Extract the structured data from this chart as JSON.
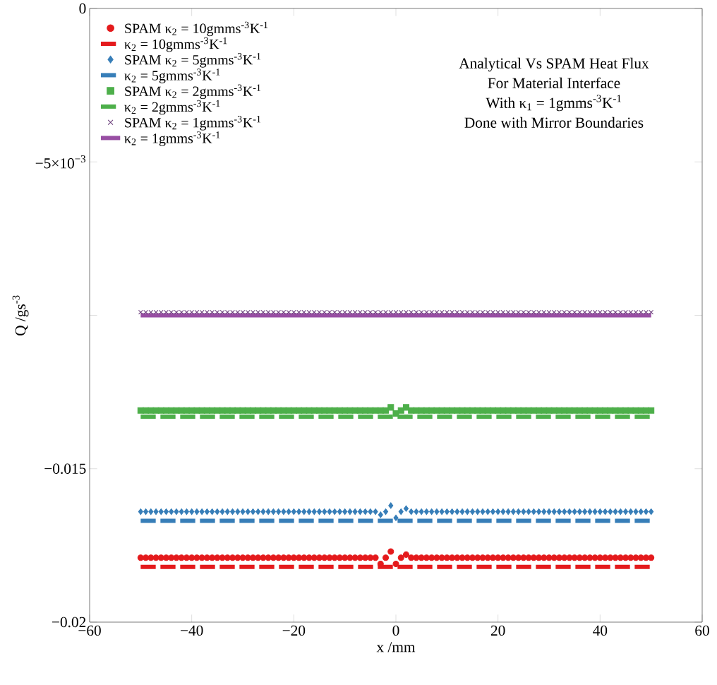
{
  "chart_data": {
    "type": "line",
    "xlabel": "x /mm",
    "ylabel": "Q /gs$^{-3}$",
    "xlim": [
      -60,
      60
    ],
    "ylim": [
      -0.02,
      0
    ],
    "xticks": [
      {
        "value": -60,
        "label": "−60"
      },
      {
        "value": -40,
        "label": "−40"
      },
      {
        "value": -20,
        "label": "−20"
      },
      0,
      20,
      40,
      60
    ],
    "yticks": [
      {
        "value": -0.02,
        "label": "−0.02"
      },
      {
        "value": -0.015,
        "label": "−0.015"
      },
      {
        "value": -0.01,
        "label": null
      },
      {
        "value": -0.005,
        "label": "−5×10$^{−3}$"
      },
      0
    ],
    "legend": "top left",
    "grid": false,
    "annotations": [
      "Analytical Vs SPAM Heat Flux",
      "For Material Interface",
      "With κ$_{1}$ = 1gmms$^{-3}$K$^{-1}$",
      "Done with Mirror Boundaries"
    ],
    "series": [
      {
        "name": "SPAM κ$_{2}$ = 10gmms$^{-3}$K$^{-1}$",
        "type": "scatter",
        "marker": "circle",
        "color": "#e41a1c",
        "x": [
          -50,
          -49,
          -48,
          -47,
          -46,
          -45,
          -44,
          -43,
          -42,
          -41,
          -40,
          -39,
          -38,
          -37,
          -36,
          -35,
          -34,
          -33,
          -32,
          -31,
          -30,
          -29,
          -28,
          -27,
          -26,
          -25,
          -24,
          -23,
          -22,
          -21,
          -20,
          -19,
          -18,
          -17,
          -16,
          -15,
          -14,
          -13,
          -12,
          -11,
          -10,
          -9,
          -8,
          -7,
          -6,
          -5,
          -4,
          -3,
          -2,
          -1,
          0,
          1,
          2,
          3,
          4,
          5,
          6,
          7,
          8,
          9,
          10,
          11,
          12,
          13,
          14,
          15,
          16,
          17,
          18,
          19,
          20,
          21,
          22,
          23,
          24,
          25,
          26,
          27,
          28,
          29,
          30,
          31,
          32,
          33,
          34,
          35,
          36,
          37,
          38,
          39,
          40,
          41,
          42,
          43,
          44,
          45,
          46,
          47,
          48,
          49,
          50
        ],
        "values": [
          -0.0179,
          -0.0179,
          -0.0179,
          -0.0179,
          -0.0179,
          -0.0179,
          -0.0179,
          -0.0179,
          -0.0179,
          -0.0179,
          -0.0179,
          -0.0179,
          -0.0179,
          -0.0179,
          -0.0179,
          -0.0179,
          -0.0179,
          -0.0179,
          -0.0179,
          -0.0179,
          -0.0179,
          -0.0179,
          -0.0179,
          -0.0179,
          -0.0179,
          -0.0179,
          -0.0179,
          -0.0179,
          -0.0179,
          -0.0179,
          -0.0179,
          -0.0179,
          -0.0179,
          -0.0179,
          -0.0179,
          -0.0179,
          -0.0179,
          -0.0179,
          -0.0179,
          -0.0179,
          -0.0179,
          -0.0179,
          -0.0179,
          -0.0179,
          -0.0179,
          -0.0179,
          -0.0179,
          -0.0181,
          -0.0179,
          -0.0177,
          -0.0181,
          -0.0179,
          -0.0178,
          -0.0179,
          -0.0179,
          -0.0179,
          -0.0179,
          -0.0179,
          -0.0179,
          -0.0179,
          -0.0179,
          -0.0179,
          -0.0179,
          -0.0179,
          -0.0179,
          -0.0179,
          -0.0179,
          -0.0179,
          -0.0179,
          -0.0179,
          -0.0179,
          -0.0179,
          -0.0179,
          -0.0179,
          -0.0179,
          -0.0179,
          -0.0179,
          -0.0179,
          -0.0179,
          -0.0179,
          -0.0179,
          -0.0179,
          -0.0179,
          -0.0179,
          -0.0179,
          -0.0179,
          -0.0179,
          -0.0179,
          -0.0179,
          -0.0179,
          -0.0179,
          -0.0179,
          -0.0179,
          -0.0179,
          -0.0179,
          -0.0179,
          -0.0179,
          -0.0179,
          -0.0179,
          -0.0179,
          -0.0179
        ]
      },
      {
        "name": "κ$_{2}$ = 10gmms$^{-3}$K$^{-1}$",
        "line_style": "dashed",
        "color": "#e41a1c",
        "x": [
          -50,
          50
        ],
        "values": [
          -0.0182,
          -0.0182
        ]
      },
      {
        "name": "SPAM κ$_{2}$ = 5gmms$^{-3}$K$^{-1}$",
        "type": "scatter",
        "marker": "diamond",
        "color": "#377eb8",
        "x": [
          -50,
          -49,
          -48,
          -47,
          -46,
          -45,
          -44,
          -43,
          -42,
          -41,
          -40,
          -39,
          -38,
          -37,
          -36,
          -35,
          -34,
          -33,
          -32,
          -31,
          -30,
          -29,
          -28,
          -27,
          -26,
          -25,
          -24,
          -23,
          -22,
          -21,
          -20,
          -19,
          -18,
          -17,
          -16,
          -15,
          -14,
          -13,
          -12,
          -11,
          -10,
          -9,
          -8,
          -7,
          -6,
          -5,
          -4,
          -3,
          -2,
          -1,
          0,
          1,
          2,
          3,
          4,
          5,
          6,
          7,
          8,
          9,
          10,
          11,
          12,
          13,
          14,
          15,
          16,
          17,
          18,
          19,
          20,
          21,
          22,
          23,
          24,
          25,
          26,
          27,
          28,
          29,
          30,
          31,
          32,
          33,
          34,
          35,
          36,
          37,
          38,
          39,
          40,
          41,
          42,
          43,
          44,
          45,
          46,
          47,
          48,
          49,
          50
        ],
        "values": [
          -0.0164,
          -0.0164,
          -0.0164,
          -0.0164,
          -0.0164,
          -0.0164,
          -0.0164,
          -0.0164,
          -0.0164,
          -0.0164,
          -0.0164,
          -0.0164,
          -0.0164,
          -0.0164,
          -0.0164,
          -0.0164,
          -0.0164,
          -0.0164,
          -0.0164,
          -0.0164,
          -0.0164,
          -0.0164,
          -0.0164,
          -0.0164,
          -0.0164,
          -0.0164,
          -0.0164,
          -0.0164,
          -0.0164,
          -0.0164,
          -0.0164,
          -0.0164,
          -0.0164,
          -0.0164,
          -0.0164,
          -0.0164,
          -0.0164,
          -0.0164,
          -0.0164,
          -0.0164,
          -0.0164,
          -0.0164,
          -0.0164,
          -0.0164,
          -0.0164,
          -0.0164,
          -0.0164,
          -0.0165,
          -0.0164,
          -0.0162,
          -0.0166,
          -0.0164,
          -0.0163,
          -0.0164,
          -0.0164,
          -0.0164,
          -0.0164,
          -0.0164,
          -0.0164,
          -0.0164,
          -0.0164,
          -0.0164,
          -0.0164,
          -0.0164,
          -0.0164,
          -0.0164,
          -0.0164,
          -0.0164,
          -0.0164,
          -0.0164,
          -0.0164,
          -0.0164,
          -0.0164,
          -0.0164,
          -0.0164,
          -0.0164,
          -0.0164,
          -0.0164,
          -0.0164,
          -0.0164,
          -0.0164,
          -0.0164,
          -0.0164,
          -0.0164,
          -0.0164,
          -0.0164,
          -0.0164,
          -0.0164,
          -0.0164,
          -0.0164,
          -0.0164,
          -0.0164,
          -0.0164,
          -0.0164,
          -0.0164,
          -0.0164,
          -0.0164,
          -0.0164,
          -0.0164,
          -0.0164,
          -0.0164
        ]
      },
      {
        "name": "κ$_{2}$ = 5gmms$^{-3}$K$^{-1}$",
        "line_style": "dashed",
        "color": "#377eb8",
        "x": [
          -50,
          50
        ],
        "values": [
          -0.0167,
          -0.0167
        ]
      },
      {
        "name": "SPAM κ$_{2}$ = 2gmms$^{-3}$K$^{-1}$",
        "type": "scatter",
        "marker": "square",
        "color": "#4daf4a",
        "x": [
          -50,
          -49,
          -48,
          -47,
          -46,
          -45,
          -44,
          -43,
          -42,
          -41,
          -40,
          -39,
          -38,
          -37,
          -36,
          -35,
          -34,
          -33,
          -32,
          -31,
          -30,
          -29,
          -28,
          -27,
          -26,
          -25,
          -24,
          -23,
          -22,
          -21,
          -20,
          -19,
          -18,
          -17,
          -16,
          -15,
          -14,
          -13,
          -12,
          -11,
          -10,
          -9,
          -8,
          -7,
          -6,
          -5,
          -4,
          -3,
          -2,
          -1,
          0,
          1,
          2,
          3,
          4,
          5,
          6,
          7,
          8,
          9,
          10,
          11,
          12,
          13,
          14,
          15,
          16,
          17,
          18,
          19,
          20,
          21,
          22,
          23,
          24,
          25,
          26,
          27,
          28,
          29,
          30,
          31,
          32,
          33,
          34,
          35,
          36,
          37,
          38,
          39,
          40,
          41,
          42,
          43,
          44,
          45,
          46,
          47,
          48,
          49,
          50
        ],
        "values": [
          -0.0131,
          -0.0131,
          -0.0131,
          -0.0131,
          -0.0131,
          -0.0131,
          -0.0131,
          -0.0131,
          -0.0131,
          -0.0131,
          -0.0131,
          -0.0131,
          -0.0131,
          -0.0131,
          -0.0131,
          -0.0131,
          -0.0131,
          -0.0131,
          -0.0131,
          -0.0131,
          -0.0131,
          -0.0131,
          -0.0131,
          -0.0131,
          -0.0131,
          -0.0131,
          -0.0131,
          -0.0131,
          -0.0131,
          -0.0131,
          -0.0131,
          -0.0131,
          -0.0131,
          -0.0131,
          -0.0131,
          -0.0131,
          -0.0131,
          -0.0131,
          -0.0131,
          -0.0131,
          -0.0131,
          -0.0131,
          -0.0131,
          -0.0131,
          -0.0131,
          -0.0131,
          -0.0131,
          -0.0131,
          -0.0131,
          -0.013,
          -0.0132,
          -0.0131,
          -0.013,
          -0.0131,
          -0.0131,
          -0.0131,
          -0.0131,
          -0.0131,
          -0.0131,
          -0.0131,
          -0.0131,
          -0.0131,
          -0.0131,
          -0.0131,
          -0.0131,
          -0.0131,
          -0.0131,
          -0.0131,
          -0.0131,
          -0.0131,
          -0.0131,
          -0.0131,
          -0.0131,
          -0.0131,
          -0.0131,
          -0.0131,
          -0.0131,
          -0.0131,
          -0.0131,
          -0.0131,
          -0.0131,
          -0.0131,
          -0.0131,
          -0.0131,
          -0.0131,
          -0.0131,
          -0.0131,
          -0.0131,
          -0.0131,
          -0.0131,
          -0.0131,
          -0.0131,
          -0.0131,
          -0.0131,
          -0.0131,
          -0.0131,
          -0.0131,
          -0.0131,
          -0.0131,
          -0.0131,
          -0.0131
        ]
      },
      {
        "name": "κ$_{2}$ = 2gmms$^{-3}$K$^{-1}$",
        "line_style": "dashed",
        "color": "#4daf4a",
        "x": [
          -50,
          50
        ],
        "values": [
          -0.0133,
          -0.0133
        ]
      },
      {
        "name": "SPAM κ$_{2}$ = 1gmms$^{-3}$K$^{-1}$",
        "type": "scatter",
        "marker": "cross",
        "color": "#6a3d7a",
        "x": [
          -50,
          -49,
          -48,
          -47,
          -46,
          -45,
          -44,
          -43,
          -42,
          -41,
          -40,
          -39,
          -38,
          -37,
          -36,
          -35,
          -34,
          -33,
          -32,
          -31,
          -30,
          -29,
          -28,
          -27,
          -26,
          -25,
          -24,
          -23,
          -22,
          -21,
          -20,
          -19,
          -18,
          -17,
          -16,
          -15,
          -14,
          -13,
          -12,
          -11,
          -10,
          -9,
          -8,
          -7,
          -6,
          -5,
          -4,
          -3,
          -2,
          -1,
          0,
          1,
          2,
          3,
          4,
          5,
          6,
          7,
          8,
          9,
          10,
          11,
          12,
          13,
          14,
          15,
          16,
          17,
          18,
          19,
          20,
          21,
          22,
          23,
          24,
          25,
          26,
          27,
          28,
          29,
          30,
          31,
          32,
          33,
          34,
          35,
          36,
          37,
          38,
          39,
          40,
          41,
          42,
          43,
          44,
          45,
          46,
          47,
          48,
          49,
          50
        ],
        "values": [
          -0.0099,
          -0.0099,
          -0.0099,
          -0.0099,
          -0.0099,
          -0.0099,
          -0.0099,
          -0.0099,
          -0.0099,
          -0.0099,
          -0.0099,
          -0.0099,
          -0.0099,
          -0.0099,
          -0.0099,
          -0.0099,
          -0.0099,
          -0.0099,
          -0.0099,
          -0.0099,
          -0.0099,
          -0.0099,
          -0.0099,
          -0.0099,
          -0.0099,
          -0.0099,
          -0.0099,
          -0.0099,
          -0.0099,
          -0.0099,
          -0.0099,
          -0.0099,
          -0.0099,
          -0.0099,
          -0.0099,
          -0.0099,
          -0.0099,
          -0.0099,
          -0.0099,
          -0.0099,
          -0.0099,
          -0.0099,
          -0.0099,
          -0.0099,
          -0.0099,
          -0.0099,
          -0.0099,
          -0.0099,
          -0.0099,
          -0.0099,
          -0.0099,
          -0.0099,
          -0.0099,
          -0.0099,
          -0.0099,
          -0.0099,
          -0.0099,
          -0.0099,
          -0.0099,
          -0.0099,
          -0.0099,
          -0.0099,
          -0.0099,
          -0.0099,
          -0.0099,
          -0.0099,
          -0.0099,
          -0.0099,
          -0.0099,
          -0.0099,
          -0.0099,
          -0.0099,
          -0.0099,
          -0.0099,
          -0.0099,
          -0.0099,
          -0.0099,
          -0.0099,
          -0.0099,
          -0.0099,
          -0.0099,
          -0.0099,
          -0.0099,
          -0.0099,
          -0.0099,
          -0.0099,
          -0.0099,
          -0.0099,
          -0.0099,
          -0.0099,
          -0.0099,
          -0.0099,
          -0.0099,
          -0.0099,
          -0.0099,
          -0.0099,
          -0.0099,
          -0.0099,
          -0.0099,
          -0.0099,
          -0.0099
        ]
      },
      {
        "name": "κ$_{2}$ = 1gmms$^{-3}$K$^{-1}$",
        "line_style": "solid",
        "color": "#984ea3",
        "x": [
          -50,
          50
        ],
        "values": [
          -0.01,
          -0.01
        ]
      }
    ]
  }
}
